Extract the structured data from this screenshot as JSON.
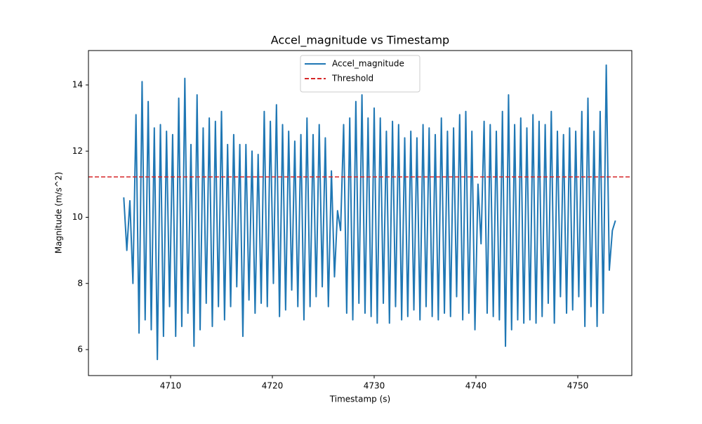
{
  "chart_data": {
    "type": "line",
    "title": "Accel_magnitude vs Timestamp",
    "xlabel": "Timestamp (s)",
    "ylabel": "Magnitude (m/s^2)",
    "x": [
      4705.4,
      4705.7,
      4706.0,
      4706.3,
      4706.6,
      4706.9,
      4707.2,
      4707.5,
      4707.8,
      4708.1,
      4708.4,
      4708.7,
      4709.0,
      4709.3,
      4709.6,
      4709.9,
      4710.2,
      4710.5,
      4710.8,
      4711.1,
      4711.4,
      4711.7,
      4712.0,
      4712.3,
      4712.6,
      4712.9,
      4713.2,
      4713.5,
      4713.8,
      4714.1,
      4714.4,
      4714.7,
      4715.0,
      4715.3,
      4715.6,
      4715.9,
      4716.2,
      4716.5,
      4716.8,
      4717.1,
      4717.4,
      4717.7,
      4718.0,
      4718.3,
      4718.6,
      4718.9,
      4719.2,
      4719.5,
      4719.8,
      4720.1,
      4720.4,
      4720.7,
      4721.0,
      4721.3,
      4721.6,
      4721.9,
      4722.2,
      4722.5,
      4722.8,
      4723.1,
      4723.4,
      4723.7,
      4724.0,
      4724.3,
      4724.6,
      4724.9,
      4725.2,
      4725.5,
      4725.8,
      4726.1,
      4726.4,
      4726.7,
      4727.0,
      4727.3,
      4727.6,
      4727.9,
      4728.2,
      4728.5,
      4728.8,
      4729.1,
      4729.4,
      4729.7,
      4730.0,
      4730.3,
      4730.6,
      4730.9,
      4731.2,
      4731.5,
      4731.8,
      4732.1,
      4732.4,
      4732.7,
      4733.0,
      4733.3,
      4733.6,
      4733.9,
      4734.2,
      4734.5,
      4734.8,
      4735.1,
      4735.4,
      4735.7,
      4736.0,
      4736.3,
      4736.6,
      4736.9,
      4737.2,
      4737.5,
      4737.8,
      4738.1,
      4738.4,
      4738.7,
      4739.0,
      4739.3,
      4739.6,
      4739.9,
      4740.2,
      4740.5,
      4740.8,
      4741.1,
      4741.4,
      4741.7,
      4742.0,
      4742.3,
      4742.6,
      4742.9,
      4743.2,
      4743.5,
      4743.8,
      4744.1,
      4744.4,
      4744.7,
      4745.0,
      4745.3,
      4745.6,
      4745.9,
      4746.2,
      4746.5,
      4746.8,
      4747.1,
      4747.4,
      4747.7,
      4748.0,
      4748.3,
      4748.6,
      4748.9,
      4749.2,
      4749.5,
      4749.8,
      4750.1,
      4750.4,
      4750.7,
      4751.0,
      4751.3,
      4751.6,
      4751.9,
      4752.2,
      4752.5,
      4752.8,
      4753.1,
      4753.4,
      4753.7
    ],
    "series": [
      {
        "name": "Accel_magnitude",
        "color": "#1f77b4",
        "values": [
          10.6,
          9.0,
          10.5,
          8.0,
          13.1,
          6.5,
          14.1,
          6.9,
          13.5,
          6.6,
          12.7,
          5.7,
          12.8,
          6.4,
          12.6,
          7.3,
          12.5,
          6.4,
          13.6,
          6.7,
          14.2,
          7.1,
          12.2,
          6.1,
          13.7,
          6.6,
          12.7,
          7.4,
          13.0,
          6.7,
          12.9,
          7.3,
          13.2,
          6.9,
          12.2,
          7.3,
          12.5,
          7.9,
          12.2,
          6.4,
          12.2,
          7.5,
          12.0,
          7.1,
          11.9,
          7.4,
          13.2,
          7.3,
          12.9,
          8.0,
          13.4,
          7.0,
          12.8,
          7.2,
          12.6,
          7.8,
          12.3,
          7.3,
          12.5,
          6.9,
          13.0,
          7.3,
          12.5,
          7.6,
          12.8,
          7.9,
          12.4,
          7.3,
          11.4,
          8.2,
          10.2,
          9.6,
          12.8,
          7.1,
          13.0,
          6.9,
          13.5,
          7.4,
          13.7,
          7.1,
          13.0,
          7.0,
          13.3,
          6.8,
          13.0,
          7.4,
          12.6,
          6.8,
          12.9,
          7.3,
          12.8,
          6.9,
          12.4,
          7.0,
          12.6,
          7.2,
          12.4,
          6.9,
          12.8,
          7.3,
          12.7,
          7.0,
          12.5,
          6.9,
          13.0,
          7.1,
          12.6,
          7.0,
          12.7,
          7.6,
          13.1,
          6.9,
          13.2,
          7.1,
          12.6,
          6.6,
          11.0,
          9.2,
          12.9,
          7.1,
          12.8,
          7.0,
          12.6,
          6.9,
          13.2,
          6.1,
          13.7,
          6.6,
          12.8,
          6.9,
          13.0,
          6.8,
          12.7,
          6.9,
          13.1,
          6.8,
          12.9,
          7.0,
          12.8,
          7.4,
          13.2,
          6.8,
          12.6,
          7.6,
          12.5,
          7.1,
          12.7,
          7.2,
          12.6,
          7.6,
          13.2,
          6.7,
          13.6,
          7.3,
          12.6,
          6.7,
          13.2,
          7.1,
          14.6,
          8.4,
          9.6,
          9.9
        ]
      }
    ],
    "hlines": [
      {
        "name": "Threshold",
        "value": 11.22,
        "color": "#d62728",
        "style": "dashed"
      }
    ],
    "xlim": [
      4701.93,
      4755.31
    ],
    "xticks": [
      4710,
      4720,
      4730,
      4740,
      4750
    ],
    "ylim": [
      5.215,
      15.04
    ],
    "yticks": [
      6,
      8,
      10,
      12,
      14
    ],
    "grid": false,
    "legend": "upper center"
  }
}
